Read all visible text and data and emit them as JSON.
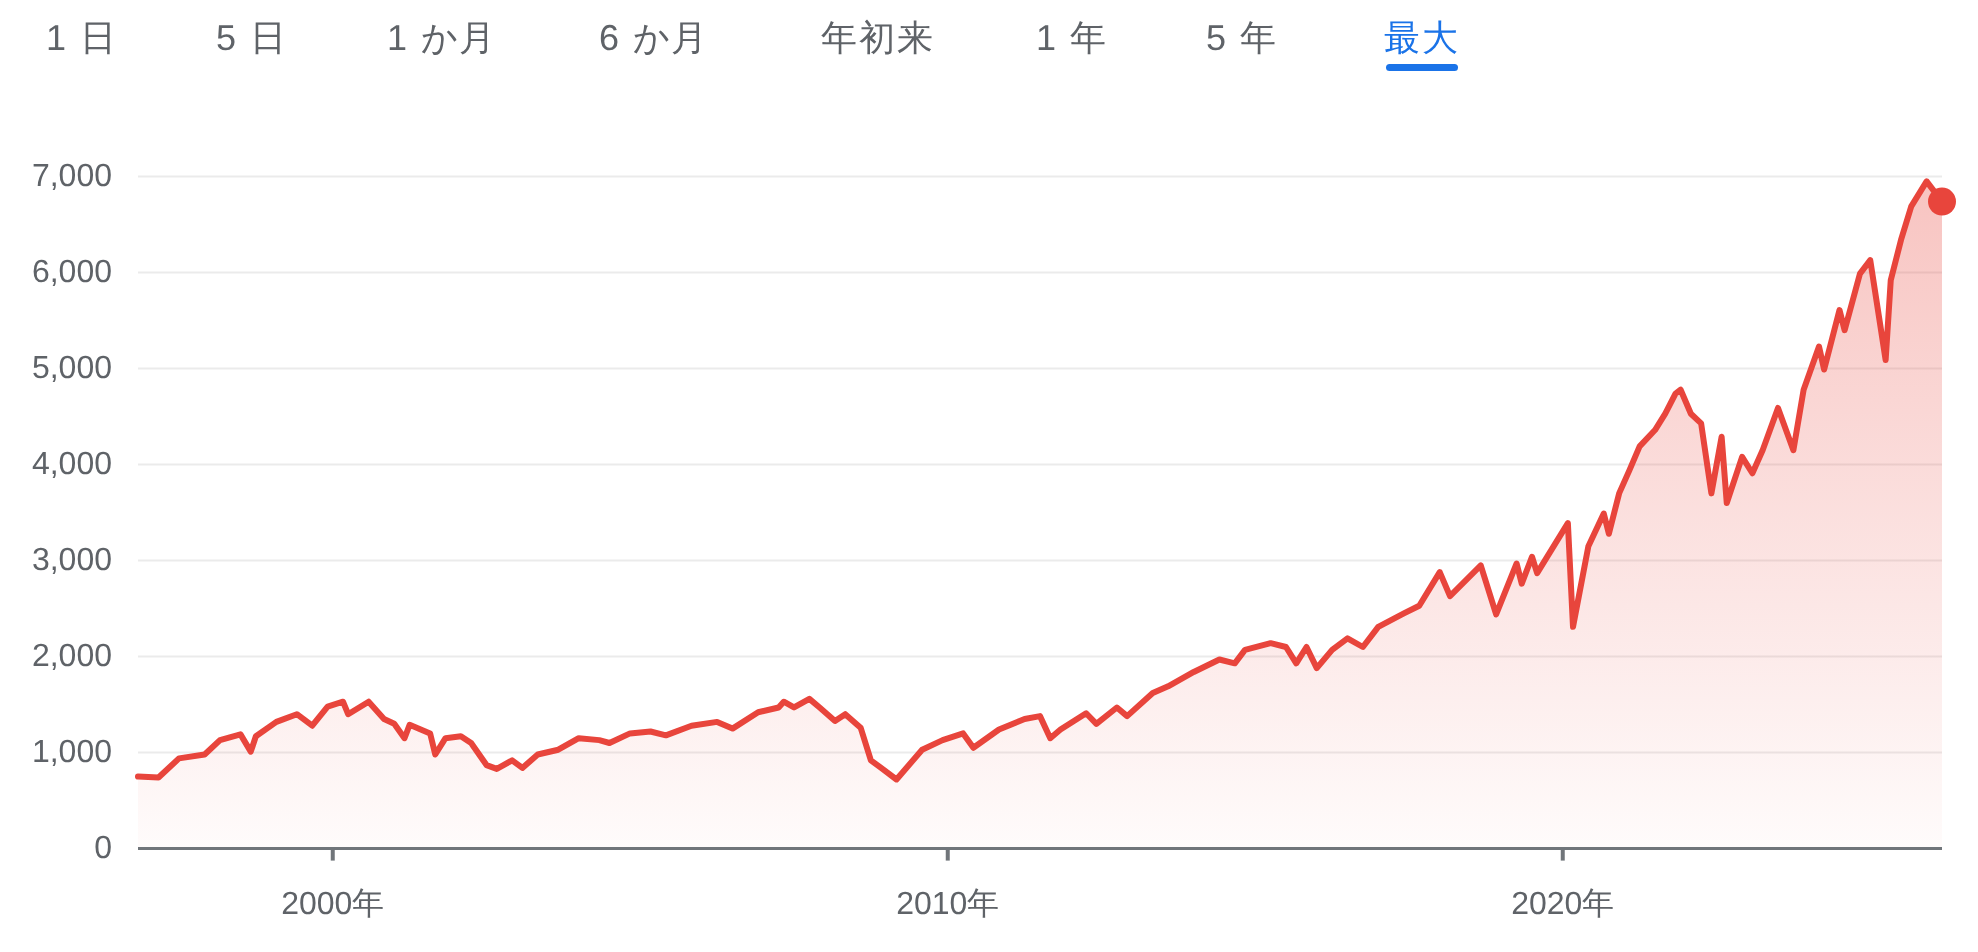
{
  "chart_data": {
    "type": "area",
    "x": [
      "1996-11",
      "1997-03",
      "1997-07",
      "1997-12",
      "1998-03",
      "1998-07",
      "1998-09",
      "1998-10",
      "1999-02",
      "1999-06",
      "1999-09",
      "1999-12",
      "2000-03",
      "2000-04",
      "2000-08",
      "2000-11",
      "2001-01",
      "2001-03",
      "2001-04",
      "2001-08",
      "2001-09",
      "2001-11",
      "2002-02",
      "2002-04",
      "2002-07",
      "2002-09",
      "2002-12",
      "2003-02",
      "2003-05",
      "2003-09",
      "2004-01",
      "2004-05",
      "2004-07",
      "2004-11",
      "2005-03",
      "2005-06",
      "2005-11",
      "2006-04",
      "2006-07",
      "2006-12",
      "2007-04",
      "2007-05",
      "2007-07",
      "2007-10",
      "2007-12",
      "2008-03",
      "2008-05",
      "2008-08",
      "2008-10",
      "2008-12",
      "2009-03",
      "2009-08",
      "2009-12",
      "2010-04",
      "2010-06",
      "2010-11",
      "2011-04",
      "2011-07",
      "2011-09",
      "2011-11",
      "2012-04",
      "2012-06",
      "2012-10",
      "2012-12",
      "2013-05",
      "2013-08",
      "2014-01",
      "2014-06",
      "2014-09",
      "2014-11",
      "2015-04",
      "2015-07",
      "2015-09",
      "2015-11",
      "2016-01",
      "2016-04",
      "2016-07",
      "2016-10",
      "2017-01",
      "2017-06",
      "2017-09",
      "2018-01",
      "2018-03",
      "2018-09",
      "2018-12",
      "2019-04",
      "2019-05",
      "2019-07",
      "2019-08",
      "2020-02",
      "2020-03",
      "2020-05",
      "2020-06",
      "2020-09",
      "2020-10",
      "2020-12",
      "2021-02",
      "2021-04",
      "2021-07",
      "2021-09",
      "2021-11",
      "2021-12",
      "2022-02",
      "2022-04",
      "2022-06",
      "2022-08",
      "2022-09",
      "2022-12",
      "2023-02",
      "2023-04",
      "2023-07",
      "2023-10",
      "2023-12",
      "2024-03",
      "2024-04",
      "2024-07",
      "2024-08",
      "2024-11",
      "2025-01",
      "2025-04",
      "2025-05",
      "2025-07",
      "2025-09",
      "2025-12",
      "2026-03"
    ],
    "series": [
      {
        "color": "#e8453c",
        "values": [
          750,
          740,
          940,
          980,
          1130,
          1190,
          1010,
          1170,
          1320,
          1400,
          1280,
          1480,
          1530,
          1400,
          1530,
          1350,
          1300,
          1150,
          1290,
          1200,
          980,
          1150,
          1170,
          1100,
          870,
          830,
          920,
          840,
          980,
          1030,
          1150,
          1130,
          1100,
          1200,
          1220,
          1180,
          1280,
          1320,
          1250,
          1420,
          1470,
          1530,
          1470,
          1560,
          1470,
          1330,
          1400,
          1260,
          920,
          840,
          720,
          1030,
          1130,
          1200,
          1050,
          1240,
          1350,
          1380,
          1150,
          1240,
          1410,
          1300,
          1470,
          1380,
          1620,
          1690,
          1840,
          1970,
          1930,
          2070,
          2140,
          2100,
          1930,
          2100,
          1880,
          2070,
          2190,
          2100,
          2310,
          2450,
          2530,
          2880,
          2630,
          2950,
          2440,
          2970,
          2760,
          3040,
          2870,
          3390,
          2310,
          2870,
          3150,
          3490,
          3280,
          3700,
          3940,
          4190,
          4360,
          4530,
          4740,
          4780,
          4530,
          4430,
          3700,
          4290,
          3600,
          4080,
          3910,
          4150,
          4590,
          4150,
          4780,
          5230,
          4990,
          5610,
          5400,
          5990,
          6130,
          5090,
          5920,
          6340,
          6690,
          6950,
          6740
        ]
      },
      {
        "type": "scatter",
        "x": [
          "2026-03"
        ],
        "color": "#e8453c",
        "values": [
          6740
        ]
      }
    ],
    "xlim": [
      "1996-11",
      "2026-03"
    ],
    "xticks": [
      {
        "value": "2000",
        "label": "2000年"
      },
      {
        "value": "2010",
        "label": "2010年"
      },
      {
        "value": "2020",
        "label": "2020年"
      }
    ],
    "ylim": [
      0,
      7000
    ],
    "yticks": [
      0,
      {
        "value": 1000,
        "label": "1,000"
      },
      {
        "value": 2000,
        "label": "2,000"
      },
      {
        "value": 3000,
        "label": "3,000"
      },
      {
        "value": 4000,
        "label": "4,000"
      },
      {
        "value": 5000,
        "label": "5,000"
      },
      {
        "value": 6000,
        "label": "6,000"
      },
      {
        "value": 7000,
        "label": "7,000"
      }
    ],
    "grid": "y",
    "annotations": [
      "1 日",
      "5 日",
      "1 か月",
      "6 か月",
      "年初来",
      "1 年",
      "5 年",
      "最大"
    ]
  }
}
